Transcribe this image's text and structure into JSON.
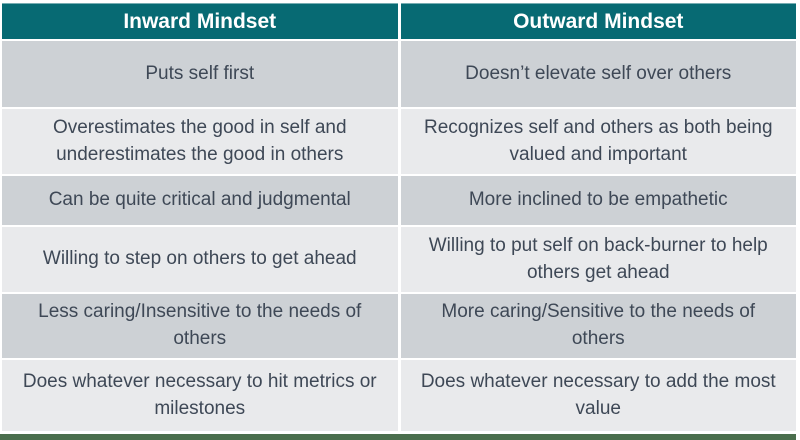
{
  "table": {
    "headers": [
      "Inward Mindset",
      "Outward Mindset"
    ],
    "rows": [
      {
        "inward": "Puts self first",
        "outward": "Doesn’t elevate self over others"
      },
      {
        "inward": "Overestimates the good in self and underestimates the good in others",
        "outward": "Recognizes self and others as both being valued and important"
      },
      {
        "inward": "Can be quite critical and judgmental",
        "outward": "More inclined to be empathetic"
      },
      {
        "inward": "Willing to step on others to get ahead",
        "outward": "Willing to put self on back-burner to help others get ahead"
      },
      {
        "inward": "Less caring/Insensitive to the needs of others",
        "outward": "More caring/Sensitive to the needs of others"
      },
      {
        "inward": "Does whatever necessary to hit metrics or milestones",
        "outward": "Does whatever necessary to add the most value"
      }
    ]
  },
  "colors": {
    "header_bg": "#076A73",
    "header_text": "#FFFFFF",
    "row_dark": "#CDD1D5",
    "row_light": "#E9EAEC",
    "body_text": "#3E4856",
    "separator": "#FFFFFF",
    "bottom_bar": "#4A6E4D"
  }
}
